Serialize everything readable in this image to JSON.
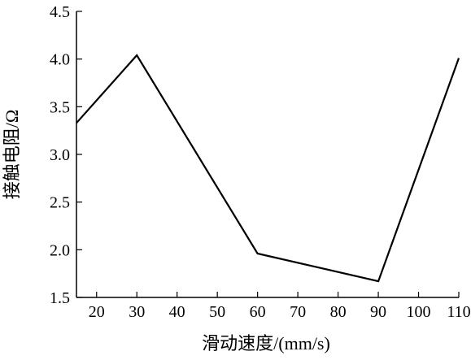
{
  "chart_data": {
    "type": "line",
    "title": "",
    "xlabel": "滑动速度/(mm/s)",
    "ylabel": "接触电阻/Ω",
    "categories": [
      "20",
      "30",
      "40",
      "50",
      "60",
      "70",
      "80",
      "90",
      "100",
      "110"
    ],
    "x_tick_values": [
      20,
      30,
      40,
      50,
      60,
      70,
      80,
      90,
      100,
      110
    ],
    "x": [
      15,
      30,
      60,
      90,
      110
    ],
    "series": [
      {
        "values": [
          3.33,
          4.04,
          1.96,
          1.67,
          4.01
        ]
      }
    ],
    "yticks": [
      "1.5",
      "2.0",
      "2.5",
      "3.0",
      "3.5",
      "4.0",
      "4.5"
    ],
    "ylim": [
      1.5,
      4.5
    ],
    "grid": false,
    "line_color": "#000000"
  }
}
